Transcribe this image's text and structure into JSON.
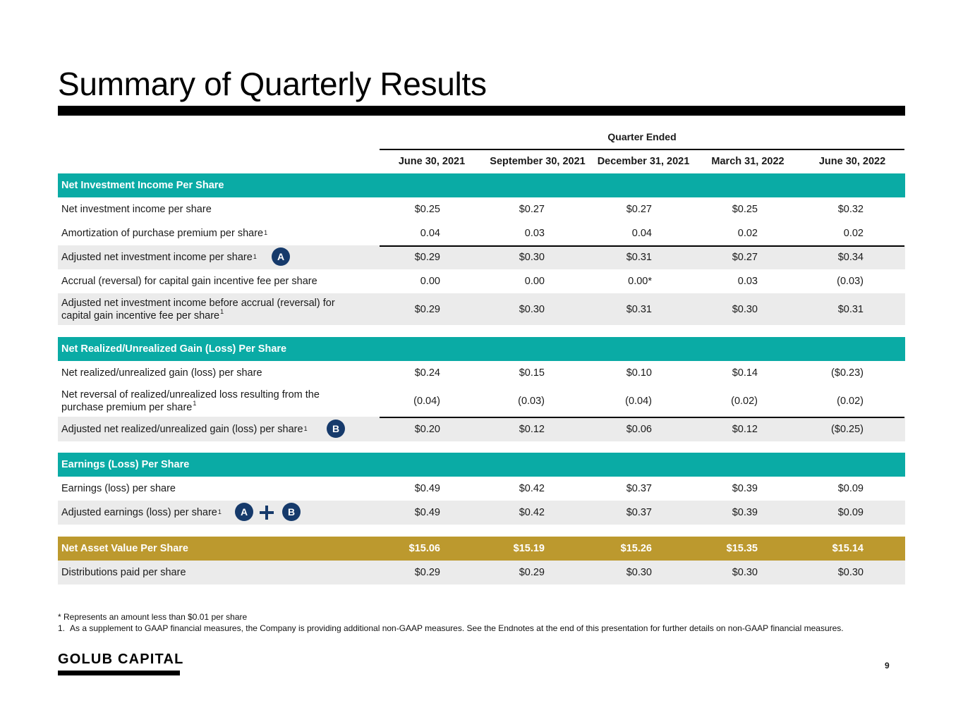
{
  "title": "Summary of Quarterly Results",
  "quarter_ended": "Quarter Ended",
  "columns": [
    "June 30, 2021",
    "September 30, 2021",
    "December 31, 2021",
    "March 31, 2022",
    "June 30, 2022"
  ],
  "sections": {
    "nii": {
      "header": "Net Investment Income Per Share",
      "rows": [
        {
          "label": "Net investment income per share",
          "values": [
            "$0.25",
            "$0.27",
            "$0.27",
            "$0.25",
            "$0.32"
          ]
        },
        {
          "label": "Amortization of purchase premium per share",
          "sup": "1",
          "values": [
            "0.04",
            "0.03",
            "0.04",
            "0.02",
            "0.02"
          ]
        },
        {
          "label": "Adjusted net investment income per share",
          "sup": "1",
          "values": [
            "$0.29",
            "$0.30",
            "$0.31",
            "$0.27",
            "$0.34"
          ]
        },
        {
          "label": "Accrual (reversal) for capital gain incentive fee per share",
          "values": [
            "0.00",
            "0.00",
            "0.00*",
            "0.03",
            "(0.03)"
          ]
        },
        {
          "label_line1": "Adjusted net investment income before accrual (reversal) for",
          "label_line2": "capital gain incentive fee per share",
          "sup": "1",
          "values": [
            "$0.29",
            "$0.30",
            "$0.31",
            "$0.30",
            "$0.31"
          ]
        }
      ]
    },
    "gain": {
      "header": "Net Realized/Unrealized Gain (Loss) Per Share",
      "rows": [
        {
          "label": "Net realized/unrealized gain (loss) per share",
          "values": [
            "$0.24",
            "$0.15",
            "$0.10",
            "$0.14",
            "($0.23)"
          ]
        },
        {
          "label_line1": "Net reversal of realized/unrealized loss resulting from the",
          "label_line2": "purchase premium per share",
          "sup": "1",
          "values": [
            "(0.04)",
            "(0.03)",
            "(0.04)",
            "(0.02)",
            "(0.02)"
          ]
        },
        {
          "label": "Adjusted net realized/unrealized gain (loss) per share",
          "sup": "1",
          "values": [
            "$0.20",
            "$0.12",
            "$0.06",
            "$0.12",
            "($0.25)"
          ]
        }
      ]
    },
    "eps": {
      "header": "Earnings (Loss) Per Share",
      "rows": [
        {
          "label": "Earnings (loss) per share",
          "values": [
            "$0.49",
            "$0.42",
            "$0.37",
            "$0.39",
            "$0.09"
          ]
        },
        {
          "label": "Adjusted earnings (loss) per share",
          "sup": "1",
          "values": [
            "$0.49",
            "$0.42",
            "$0.37",
            "$0.39",
            "$0.09"
          ]
        }
      ]
    },
    "nav": {
      "label": "Net Asset Value Per Share",
      "values": [
        "$15.06",
        "$15.19",
        "$15.26",
        "$15.35",
        "$15.14"
      ]
    },
    "dist": {
      "label": "Distributions paid per share",
      "values": [
        "$0.29",
        "$0.29",
        "$0.30",
        "$0.30",
        "$0.30"
      ]
    }
  },
  "badges": {
    "a": "A",
    "b": "B"
  },
  "colors": {
    "teal_band": "#0aaba5",
    "gold_band": "#bc992e",
    "badge": "#163a6b",
    "grey_row": "#ebebeb"
  },
  "footnotes": {
    "star": "* Represents an amount less than $0.01 per share",
    "one_num": "1.",
    "one_text": "As a supplement to GAAP financial measures, the Company is providing additional non-GAAP measures. See the Endnotes at the end of this presentation for further details on non-GAAP financial measures."
  },
  "logo": "GOLUB CAPITAL",
  "page_number": "9"
}
